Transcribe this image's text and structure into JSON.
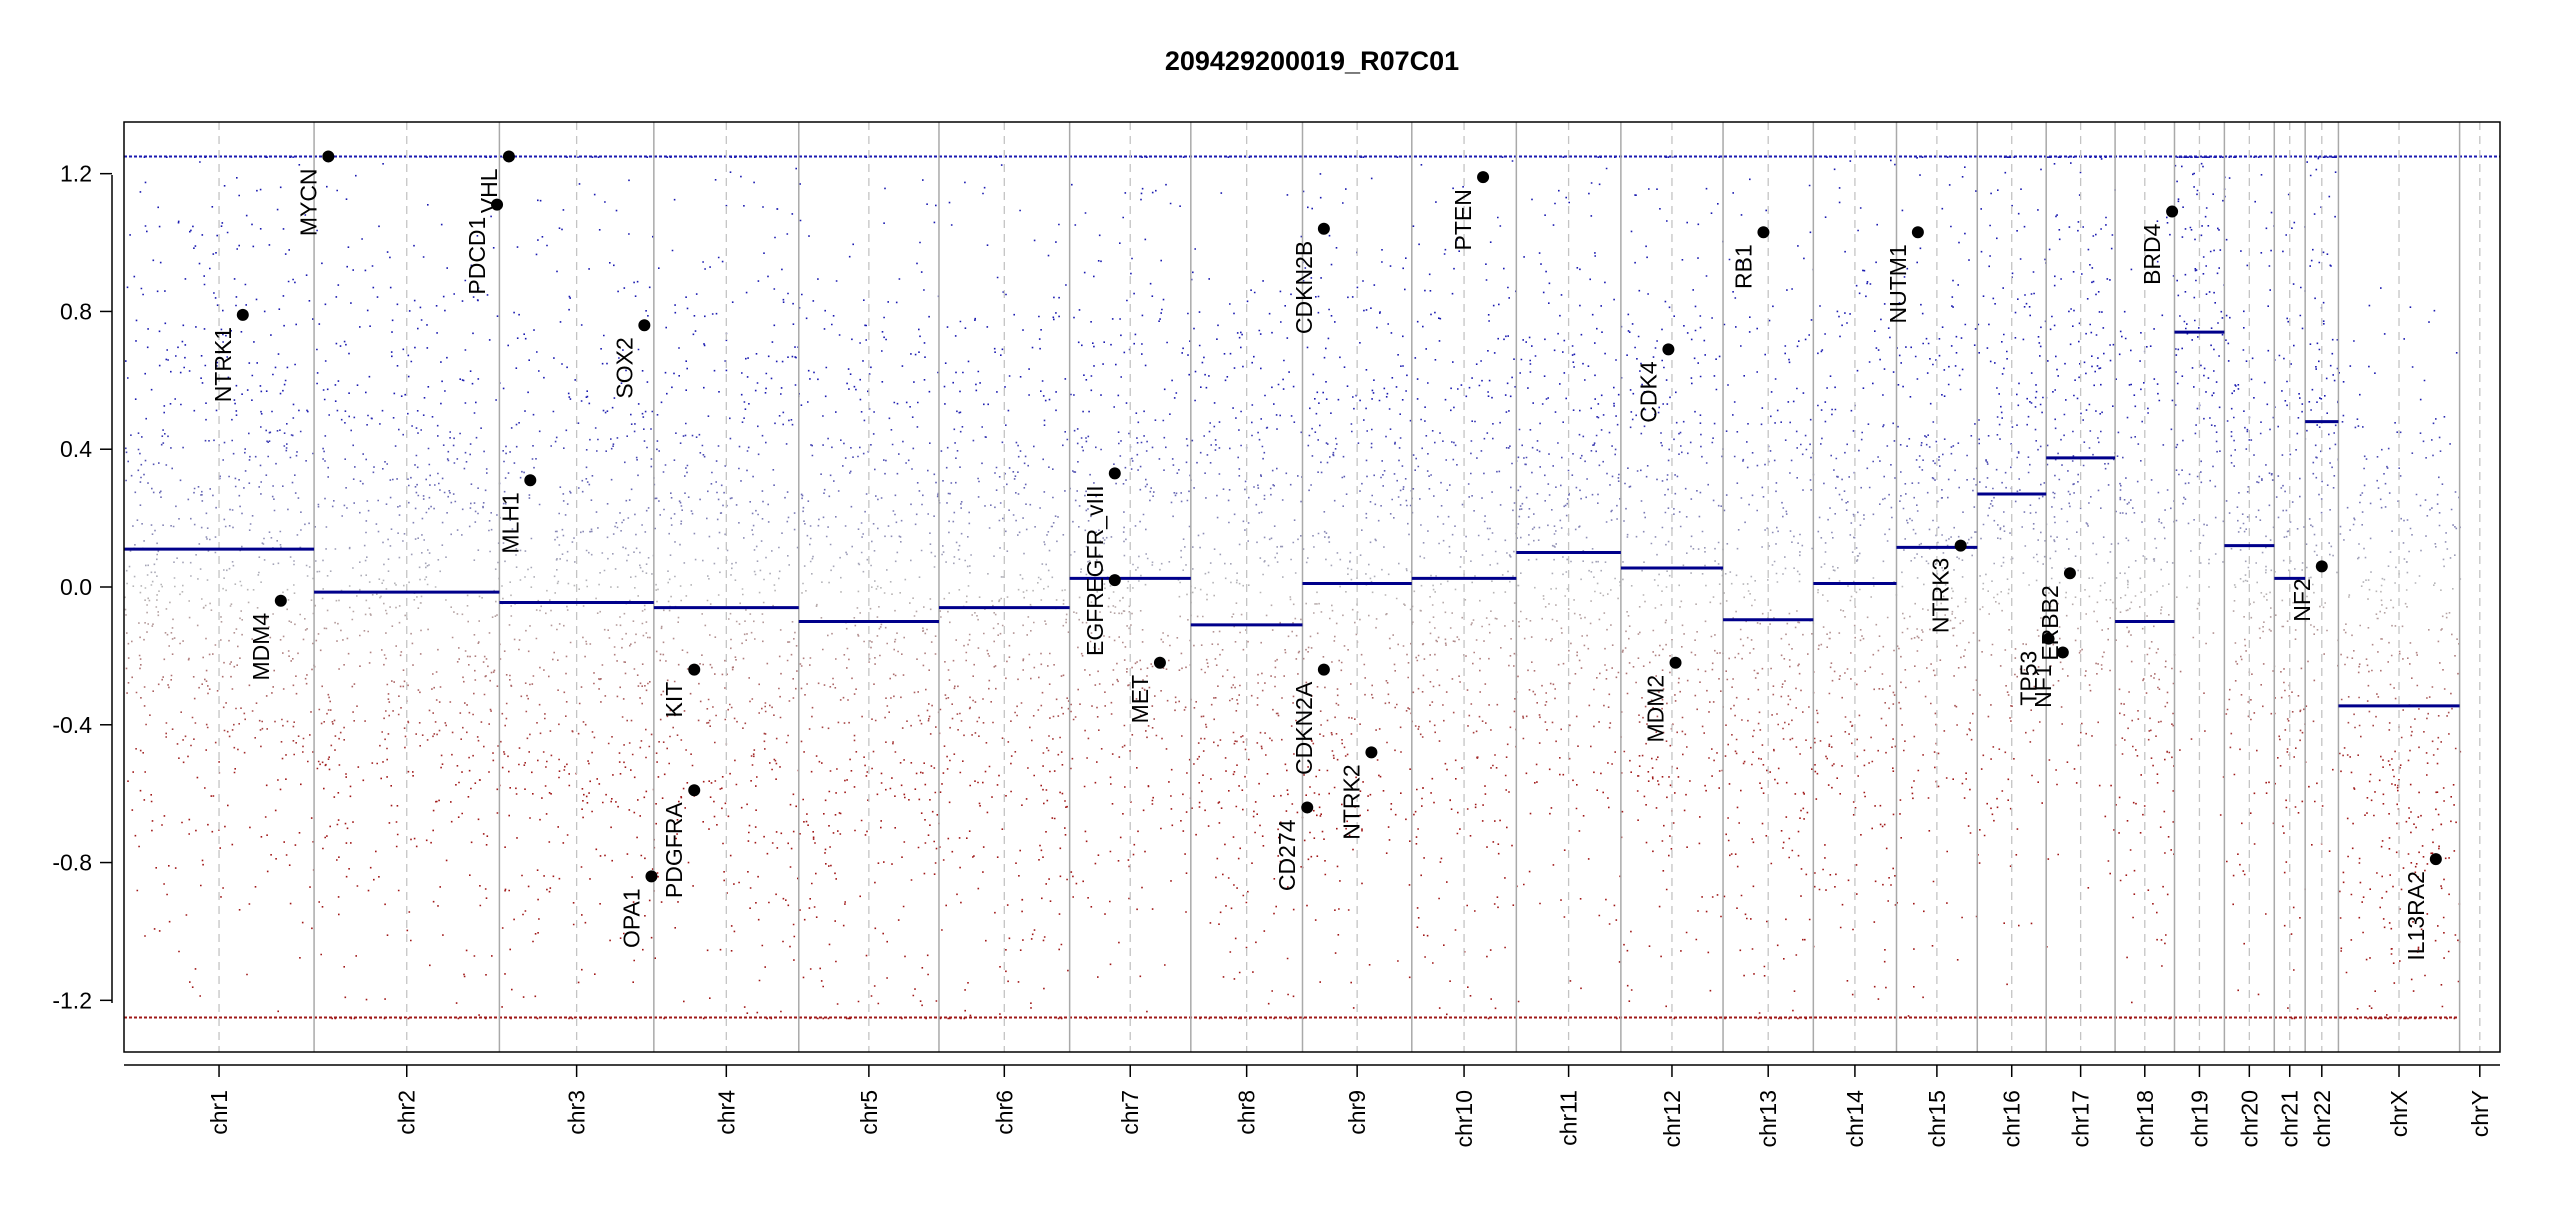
{
  "chart_data": {
    "type": "scatter",
    "title": "209429200019_R07C01",
    "xlabel": "",
    "ylabel": "",
    "ylim": [
      -1.35,
      1.35
    ],
    "yticks": [
      -1.2,
      -0.8,
      -0.4,
      0.0,
      0.4,
      0.8,
      1.2
    ],
    "ytick_labels": [
      "-1.2",
      "-0.8",
      "-0.4",
      "0.0",
      "0.4",
      "0.8",
      "1.2"
    ],
    "grid": false,
    "legend": "none",
    "colors": {
      "gain": "#1a1ab0",
      "loss": "#a01818",
      "neutral": "#b8b8b8",
      "segment": "#00008b",
      "boundary": "#a9a9a9"
    },
    "chromosomes": [
      {
        "name": "chr1",
        "span": [
          0.0,
          0.08
        ],
        "segments": [
          {
            "range": [
              0.0,
              0.08
            ],
            "value": 0.11
          }
        ]
      },
      {
        "name": "chr2",
        "span": [
          0.08,
          0.158
        ],
        "segments": [
          {
            "range": [
              0.08,
              0.158
            ],
            "value": -0.015
          }
        ]
      },
      {
        "name": "chr3",
        "span": [
          0.158,
          0.223
        ],
        "segments": [
          {
            "range": [
              0.158,
              0.223
            ],
            "value": -0.045
          }
        ]
      },
      {
        "name": "chr4",
        "span": [
          0.223,
          0.284
        ],
        "segments": [
          {
            "range": [
              0.223,
              0.284
            ],
            "value": -0.06
          }
        ]
      },
      {
        "name": "chr5",
        "span": [
          0.284,
          0.343
        ],
        "segments": [
          {
            "range": [
              0.284,
              0.343
            ],
            "value": -0.1
          }
        ]
      },
      {
        "name": "chr6",
        "span": [
          0.343,
          0.398
        ],
        "segments": [
          {
            "range": [
              0.343,
              0.398
            ],
            "value": -0.06
          }
        ]
      },
      {
        "name": "chr7",
        "span": [
          0.398,
          0.449
        ],
        "segments": [
          {
            "range": [
              0.398,
              0.449
            ],
            "value": 0.025
          }
        ]
      },
      {
        "name": "chr8",
        "span": [
          0.449,
          0.496
        ],
        "segments": [
          {
            "range": [
              0.449,
              0.496
            ],
            "value": -0.11
          }
        ]
      },
      {
        "name": "chr9",
        "span": [
          0.496,
          0.542
        ],
        "segments": [
          {
            "range": [
              0.496,
              0.542
            ],
            "value": 0.01
          }
        ]
      },
      {
        "name": "chr10",
        "span": [
          0.542,
          0.586
        ],
        "segments": [
          {
            "range": [
              0.542,
              0.586
            ],
            "value": 0.025
          }
        ]
      },
      {
        "name": "chr11",
        "span": [
          0.586,
          0.63
        ],
        "segments": [
          {
            "range": [
              0.586,
              0.63
            ],
            "value": 0.1
          }
        ]
      },
      {
        "name": "chr12",
        "span": [
          0.63,
          0.673
        ],
        "segments": [
          {
            "range": [
              0.63,
              0.673
            ],
            "value": 0.055
          }
        ]
      },
      {
        "name": "chr13",
        "span": [
          0.673,
          0.711
        ],
        "segments": [
          {
            "range": [
              0.673,
              0.711
            ],
            "value": -0.095
          }
        ]
      },
      {
        "name": "chr14",
        "span": [
          0.711,
          0.746
        ],
        "segments": [
          {
            "range": [
              0.711,
              0.746
            ],
            "value": 0.01
          }
        ]
      },
      {
        "name": "chr15",
        "span": [
          0.746,
          0.78
        ],
        "segments": [
          {
            "range": [
              0.746,
              0.78
            ],
            "value": 0.115
          }
        ]
      },
      {
        "name": "chr16",
        "span": [
          0.78,
          0.809
        ],
        "segments": [
          {
            "range": [
              0.78,
              0.809
            ],
            "value": 0.27
          }
        ]
      },
      {
        "name": "chr17",
        "span": [
          0.809,
          0.838
        ],
        "segments": [
          {
            "range": [
              0.809,
              0.838
            ],
            "value": 0.375
          }
        ]
      },
      {
        "name": "chr18",
        "span": [
          0.838,
          0.863
        ],
        "segments": [
          {
            "range": [
              0.838,
              0.863
            ],
            "value": -0.1
          }
        ]
      },
      {
        "name": "chr19",
        "span": [
          0.863,
          0.884
        ],
        "segments": [
          {
            "range": [
              0.863,
              0.884
            ],
            "value": 0.74
          }
        ]
      },
      {
        "name": "chr20",
        "span": [
          0.884,
          0.905
        ],
        "segments": [
          {
            "range": [
              0.884,
              0.905
            ],
            "value": 0.12
          }
        ]
      },
      {
        "name": "chr21",
        "span": [
          0.905,
          0.918
        ],
        "segments": [
          {
            "range": [
              0.905,
              0.918
            ],
            "value": 0.025
          }
        ]
      },
      {
        "name": "chr22",
        "span": [
          0.918,
          0.932
        ],
        "segments": [
          {
            "range": [
              0.918,
              0.932
            ],
            "value": 0.48
          }
        ]
      },
      {
        "name": "chrX",
        "span": [
          0.932,
          0.983
        ],
        "segments": [
          {
            "range": [
              0.932,
              0.983
            ],
            "value": -0.345
          }
        ]
      },
      {
        "name": "chrY",
        "span": [
          0.983,
          1.0
        ],
        "segments": []
      }
    ],
    "genes": [
      {
        "name": "NTRK1",
        "chrom": "chr1",
        "pos": 0.05,
        "value": 0.79
      },
      {
        "name": "MDM4",
        "chrom": "chr1",
        "pos": 0.066,
        "value": -0.04
      },
      {
        "name": "MYCN",
        "chrom": "chr2",
        "pos": 0.086,
        "value": 1.25
      },
      {
        "name": "PDCD1",
        "chrom": "chr2",
        "pos": 0.157,
        "value": 1.11
      },
      {
        "name": "VHL",
        "chrom": "chr3",
        "pos": 0.162,
        "value": 1.25
      },
      {
        "name": "MLH1",
        "chrom": "chr3",
        "pos": 0.171,
        "value": 0.31
      },
      {
        "name": "SOX2",
        "chrom": "chr3",
        "pos": 0.219,
        "value": 0.76
      },
      {
        "name": "OPA1",
        "chrom": "chr3",
        "pos": 0.222,
        "value": -0.84
      },
      {
        "name": "KIT",
        "chrom": "chr4",
        "pos": 0.24,
        "value": -0.24
      },
      {
        "name": "PDGFRA",
        "chrom": "chr4",
        "pos": 0.24,
        "value": -0.59
      },
      {
        "name": "EGFR",
        "chrom": "chr7",
        "pos": 0.417,
        "value": 0.02
      },
      {
        "name": "EGFR_vIII",
        "chrom": "chr7",
        "pos": 0.417,
        "value": 0.33
      },
      {
        "name": "MET",
        "chrom": "chr7",
        "pos": 0.436,
        "value": -0.22
      },
      {
        "name": "CD274",
        "chrom": "chr9",
        "pos": 0.498,
        "value": -0.64
      },
      {
        "name": "CDKN2A",
        "chrom": "chr9",
        "pos": 0.505,
        "value": -0.24
      },
      {
        "name": "CDKN2B",
        "chrom": "chr9",
        "pos": 0.505,
        "value": 1.04
      },
      {
        "name": "NTRK2",
        "chrom": "chr9",
        "pos": 0.525,
        "value": -0.48
      },
      {
        "name": "PTEN",
        "chrom": "chr10",
        "pos": 0.572,
        "value": 1.19
      },
      {
        "name": "CDK4",
        "chrom": "chr12",
        "pos": 0.65,
        "value": 0.69
      },
      {
        "name": "MDM2",
        "chrom": "chr12",
        "pos": 0.653,
        "value": -0.22
      },
      {
        "name": "RB1",
        "chrom": "chr13",
        "pos": 0.69,
        "value": 1.03
      },
      {
        "name": "NUTM1",
        "chrom": "chr15",
        "pos": 0.755,
        "value": 1.03
      },
      {
        "name": "NTRK3",
        "chrom": "chr15",
        "pos": 0.773,
        "value": 0.12
      },
      {
        "name": "TP53",
        "chrom": "chr17",
        "pos": 0.81,
        "value": -0.15
      },
      {
        "name": "NF1",
        "chrom": "chr17",
        "pos": 0.816,
        "value": -0.19
      },
      {
        "name": "ERBB2",
        "chrom": "chr17",
        "pos": 0.819,
        "value": 0.04
      },
      {
        "name": "BRD4",
        "chrom": "chr19",
        "pos": 0.862,
        "value": 1.09
      },
      {
        "name": "NF2",
        "chrom": "chr22",
        "pos": 0.925,
        "value": 0.06
      },
      {
        "name": "IL13RA2",
        "chrom": "chrX",
        "pos": 0.973,
        "value": -0.79
      }
    ]
  }
}
